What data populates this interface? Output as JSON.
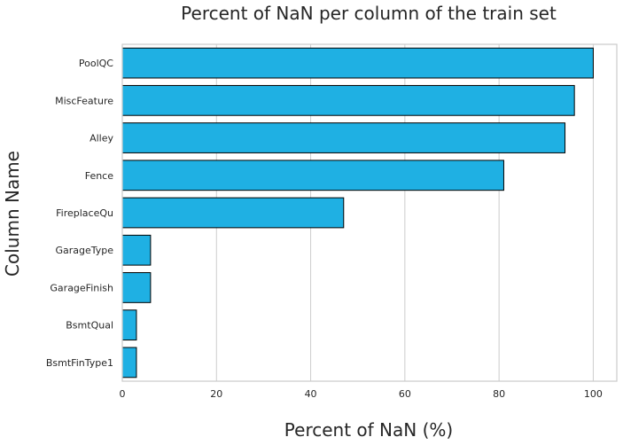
{
  "chart_data": {
    "type": "bar",
    "orientation": "horizontal",
    "title": "Percent of NaN per column of the train set",
    "xlabel": "Percent of NaN (%)",
    "ylabel": "Column Name",
    "categories": [
      "PoolQC",
      "MiscFeature",
      "Alley",
      "Fence",
      "FireplaceQu",
      "GarageType",
      "GarageFinish",
      "BsmtQual",
      "BsmtFinType1"
    ],
    "values": [
      100,
      96,
      94,
      81,
      47,
      6,
      6,
      3,
      3
    ],
    "xlim": [
      0,
      105
    ],
    "xticks": [
      "0",
      "20",
      "40",
      "60",
      "80",
      "100"
    ],
    "bar_color": "#1fb0e3",
    "grid": true
  }
}
